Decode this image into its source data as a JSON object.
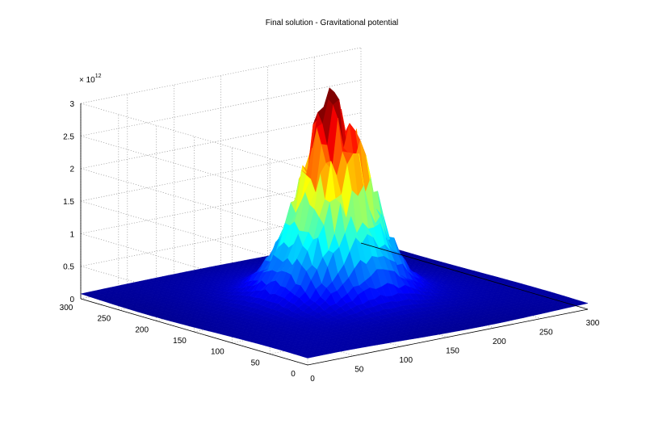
{
  "chart_data": {
    "type": "surface3d",
    "title": "Final solution - Gravitational potential",
    "xlabel": "",
    "ylabel": "",
    "zlabel": "",
    "z_exponent_label": "× 10",
    "z_exponent_power": "12",
    "x_ticks": [
      "0",
      "50",
      "100",
      "150",
      "200",
      "250",
      "300"
    ],
    "y_ticks": [
      "0",
      "50",
      "100",
      "150",
      "200",
      "250",
      "300"
    ],
    "z_ticks": [
      "0",
      "0.5",
      "1",
      "1.5",
      "2",
      "2.5",
      "3"
    ],
    "x_range": [
      0,
      300
    ],
    "y_range": [
      0,
      300
    ],
    "z_range": [
      0,
      3
    ],
    "z_units_scale": 1000000000000,
    "grid": true,
    "colormap": "jet",
    "peak": {
      "x": 150,
      "y": 150,
      "z": 2.7
    },
    "surface_floor_z": 0.05
  }
}
